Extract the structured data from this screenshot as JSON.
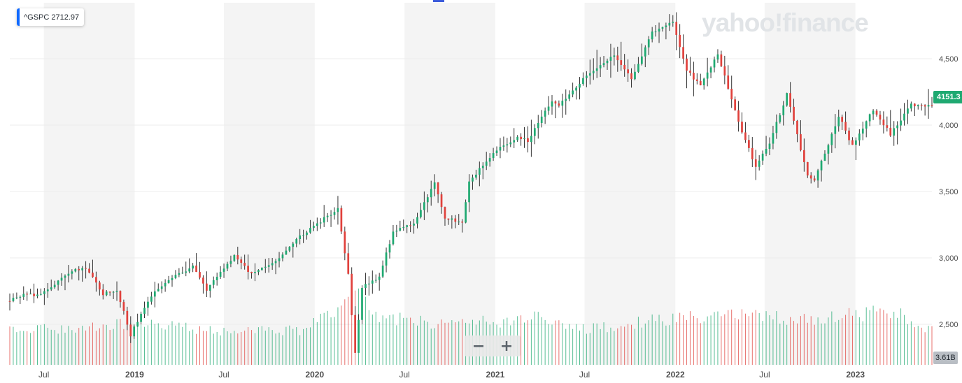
{
  "watermark": "yahoo!finance",
  "symbol_chip": {
    "text": "^GSPC 2712.97",
    "accent_color": "#0f69ff"
  },
  "last_price_label": "4151.3",
  "volume_label": "3.61B",
  "zoom": {
    "minus_label": "−",
    "plus_label": "+"
  },
  "colors": {
    "up": "#1fa971",
    "down": "#e0413c",
    "band": "#f4f4f4",
    "grid": "#ececec",
    "axis_text": "#4d4d4d",
    "price_tag": "#1fa971",
    "volume_tag": "#b9bec4",
    "watermark": "#e1e4e7",
    "top_marker": "#3b5bdb"
  },
  "chart_data": {
    "type": "candlestick",
    "interval": "weekly",
    "title": "",
    "x_range": [
      "2018-04-23",
      "2023-06-05"
    ],
    "y_range": [
      2300,
      4850
    ],
    "y_ticks": [
      {
        "value": 2500,
        "label": "2,500"
      },
      {
        "value": 3000,
        "label": "3,000"
      },
      {
        "value": 3500,
        "label": "3,500"
      },
      {
        "value": 4000,
        "label": "4,000"
      },
      {
        "value": 4500,
        "label": "4,500"
      }
    ],
    "x_ticks": [
      {
        "date": "2018-07-01",
        "label": "Jul",
        "major": false
      },
      {
        "date": "2019-01-01",
        "label": "2019",
        "major": true
      },
      {
        "date": "2019-07-01",
        "label": "Jul",
        "major": false
      },
      {
        "date": "2020-01-01",
        "label": "2020",
        "major": true
      },
      {
        "date": "2020-07-01",
        "label": "Jul",
        "major": false
      },
      {
        "date": "2021-01-01",
        "label": "2021",
        "major": true
      },
      {
        "date": "2021-07-01",
        "label": "Jul",
        "major": false
      },
      {
        "date": "2022-01-01",
        "label": "2022",
        "major": true
      },
      {
        "date": "2022-07-01",
        "label": "Jul",
        "major": false
      },
      {
        "date": "2023-01-01",
        "label": "2023",
        "major": true
      }
    ],
    "shaded_bands": [
      [
        "2018-07-01",
        "2019-01-01"
      ],
      [
        "2019-07-01",
        "2020-01-01"
      ],
      [
        "2020-07-01",
        "2021-01-01"
      ],
      [
        "2021-07-01",
        "2022-01-01"
      ],
      [
        "2022-07-01",
        "2023-01-01"
      ]
    ],
    "close_path": [
      [
        "2018-04-23",
        2680
      ],
      [
        "2018-05-21",
        2725
      ],
      [
        "2018-06-25",
        2718
      ],
      [
        "2018-08-27",
        2900
      ],
      [
        "2018-09-24",
        2925
      ],
      [
        "2018-10-29",
        2730
      ],
      [
        "2018-11-26",
        2760
      ],
      [
        "2018-12-24",
        2420
      ],
      [
        "2019-01-28",
        2680
      ],
      [
        "2019-03-04",
        2820
      ],
      [
        "2019-04-29",
        2940
      ],
      [
        "2019-05-27",
        2760
      ],
      [
        "2019-07-22",
        3010
      ],
      [
        "2019-08-26",
        2880
      ],
      [
        "2019-10-07",
        2950
      ],
      [
        "2019-11-25",
        3140
      ],
      [
        "2019-12-30",
        3240
      ],
      [
        "2020-02-17",
        3370
      ],
      [
        "2020-03-09",
        2870
      ],
      [
        "2020-03-23",
        2290
      ],
      [
        "2020-04-06",
        2780
      ],
      [
        "2020-05-11",
        2860
      ],
      [
        "2020-06-08",
        3200
      ],
      [
        "2020-07-20",
        3260
      ],
      [
        "2020-08-31",
        3570
      ],
      [
        "2020-09-21",
        3300
      ],
      [
        "2020-10-26",
        3270
      ],
      [
        "2020-11-09",
        3580
      ],
      [
        "2021-01-04",
        3810
      ],
      [
        "2021-02-15",
        3910
      ],
      [
        "2021-03-08",
        3880
      ],
      [
        "2021-04-26",
        4190
      ],
      [
        "2021-05-10",
        4150
      ],
      [
        "2021-06-28",
        4350
      ],
      [
        "2021-08-30",
        4530
      ],
      [
        "2021-10-04",
        4350
      ],
      [
        "2021-11-15",
        4700
      ],
      [
        "2021-12-27",
        4780
      ],
      [
        "2022-01-24",
        4420
      ],
      [
        "2022-02-21",
        4290
      ],
      [
        "2022-03-28",
        4540
      ],
      [
        "2022-05-09",
        4020
      ],
      [
        "2022-06-13",
        3680
      ],
      [
        "2022-07-11",
        3870
      ],
      [
        "2022-08-15",
        4230
      ],
      [
        "2022-09-26",
        3620
      ],
      [
        "2022-10-10",
        3580
      ],
      [
        "2022-11-28",
        4070
      ],
      [
        "2022-12-26",
        3840
      ],
      [
        "2023-02-06",
        4120
      ],
      [
        "2023-03-13",
        3930
      ],
      [
        "2023-04-24",
        4150
      ],
      [
        "2023-06-05",
        4151
      ]
    ],
    "last_price": 4151.3,
    "volume_unit": "B",
    "volume_range": [
      0,
      8.0
    ],
    "volume_path": [
      [
        "2018-04-23",
        3.6
      ],
      [
        "2018-10-01",
        3.7
      ],
      [
        "2018-12-24",
        4.3
      ],
      [
        "2019-06-01",
        3.5
      ],
      [
        "2019-12-01",
        3.5
      ],
      [
        "2020-02-24",
        6.0
      ],
      [
        "2020-03-16",
        7.8
      ],
      [
        "2020-05-01",
        5.0
      ],
      [
        "2020-09-01",
        4.2
      ],
      [
        "2021-02-01",
        4.5
      ],
      [
        "2021-03-08",
        5.2
      ],
      [
        "2021-07-01",
        3.6
      ],
      [
        "2022-01-03",
        4.8
      ],
      [
        "2022-06-13",
        5.0
      ],
      [
        "2022-10-01",
        4.6
      ],
      [
        "2023-03-13",
        5.5
      ],
      [
        "2023-06-05",
        3.6
      ]
    ]
  }
}
